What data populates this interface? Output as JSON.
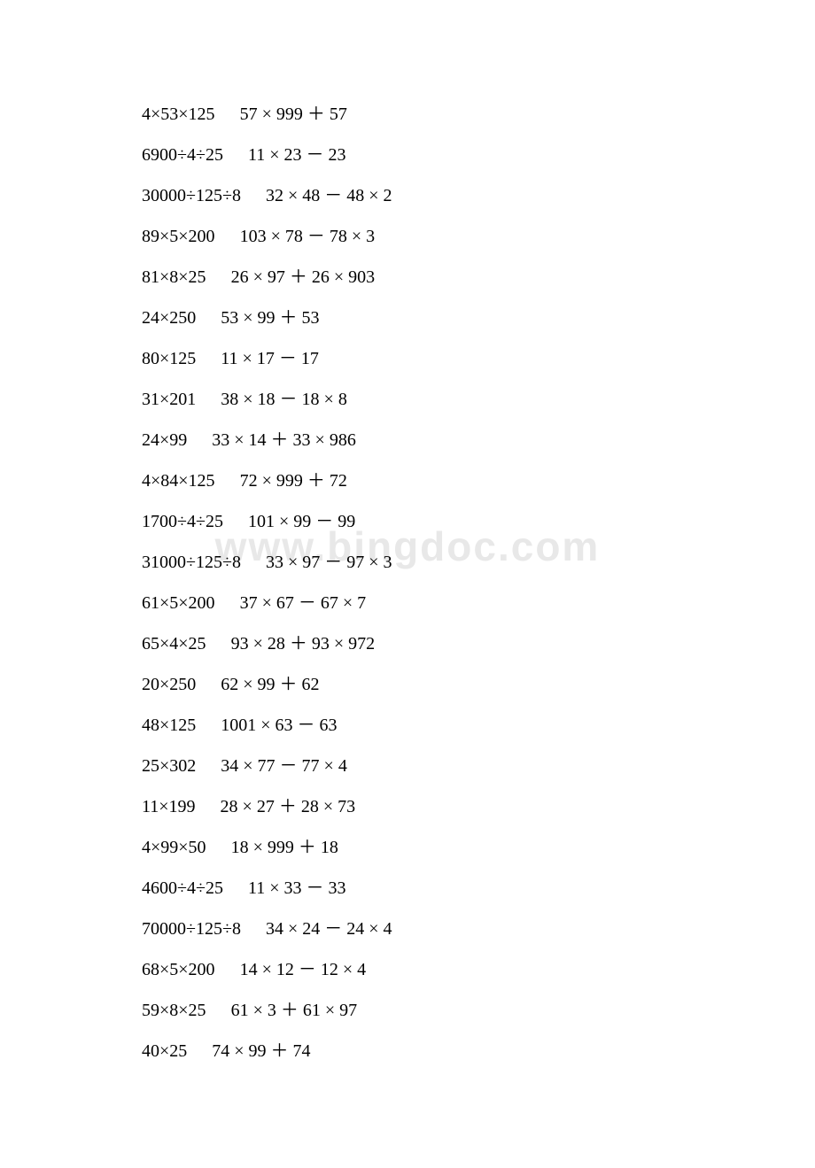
{
  "watermark": "www.bingdoc.com",
  "lines": [
    {
      "expr1": "4×53×125",
      "expr2": "57 × 999 ＋ 57"
    },
    {
      "expr1": "6900÷4÷25",
      "expr2": "11 × 23 － 23"
    },
    {
      "expr1": "30000÷125÷8",
      "expr2": "32 × 48 － 48 × 2"
    },
    {
      "expr1": "89×5×200",
      "expr2": "103 × 78 － 78 × 3"
    },
    {
      "expr1": "81×8×25",
      "expr2": "26 × 97 ＋ 26 × 903"
    },
    {
      "expr1": "24×250",
      "expr2": "53 × 99 ＋ 53"
    },
    {
      "expr1": "80×125",
      "expr2": "11 × 17 － 17"
    },
    {
      "expr1": "31×201",
      "expr2": "38 × 18 － 18 × 8"
    },
    {
      "expr1": "24×99",
      "expr2": "33 × 14 ＋ 33 × 986"
    },
    {
      "expr1": "4×84×125",
      "expr2": "72 × 999 ＋ 72"
    },
    {
      "expr1": "1700÷4÷25",
      "expr2": "101 × 99 － 99"
    },
    {
      "expr1": "31000÷125÷8",
      "expr2": "33 × 97 － 97 × 3"
    },
    {
      "expr1": "61×5×200",
      "expr2": "37 × 67 － 67 × 7"
    },
    {
      "expr1": "65×4×25",
      "expr2": "93 × 28 ＋ 93 × 972"
    },
    {
      "expr1": "20×250",
      "expr2": "62 × 99 ＋ 62"
    },
    {
      "expr1": "48×125",
      "expr2": "1001 × 63 － 63"
    },
    {
      "expr1": "25×302",
      "expr2": "34 × 77 － 77 × 4"
    },
    {
      "expr1": "11×199",
      "expr2": "28 × 27 ＋ 28 × 73"
    },
    {
      "expr1": "4×99×50",
      "expr2": "18 × 999 ＋ 18"
    },
    {
      "expr1": "4600÷4÷25",
      "expr2": "11 × 33 － 33"
    },
    {
      "expr1": "70000÷125÷8",
      "expr2": "34 × 24 － 24 × 4"
    },
    {
      "expr1": "68×5×200",
      "expr2": "14 × 12 － 12 × 4"
    },
    {
      "expr1": "59×8×25",
      "expr2": "61 × 3 ＋ 61 × 97"
    },
    {
      "expr1": "40×25",
      "expr2": "74 × 99 ＋ 74"
    }
  ]
}
